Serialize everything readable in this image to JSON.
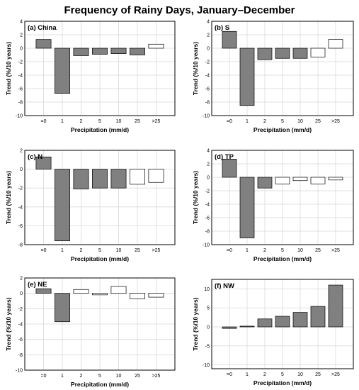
{
  "title": "Frequency of Rainy Days, January–December",
  "colors": {
    "positive_significant": "#808080",
    "negative_significant": "#808080",
    "not_significant": "#ffffff",
    "edge": "#000000",
    "grid": "#d9d9d9"
  },
  "chart_data": [
    {
      "type": "bar",
      "label": "(a) China",
      "categories": [
        "=0",
        "1",
        "2",
        "5",
        "10",
        "25",
        ">25"
      ],
      "values": [
        1.3,
        -6.7,
        -1.1,
        -0.9,
        -0.8,
        -1.0,
        0.6
      ],
      "significant": [
        true,
        true,
        true,
        true,
        true,
        true,
        false
      ],
      "xlabel": "Precipitation (mm/d)",
      "ylabel": "Trend (%/10 years)",
      "ylim": [
        -10,
        4
      ],
      "yticks": [
        -10,
        -8,
        -6,
        -4,
        -2,
        0,
        2,
        4
      ],
      "grid": true
    },
    {
      "type": "bar",
      "label": "(b) S",
      "categories": [
        "=0",
        "1",
        "2",
        "5",
        "10",
        "25",
        ">25"
      ],
      "values": [
        2.5,
        -8.5,
        -1.7,
        -1.5,
        -1.5,
        -1.3,
        1.3
      ],
      "significant": [
        true,
        true,
        true,
        true,
        true,
        false,
        false
      ],
      "xlabel": "Precipitation (mm/d)",
      "ylabel": "Trend (%/10 years)",
      "ylim": [
        -10,
        4
      ],
      "yticks": [
        -10,
        -8,
        -6,
        -4,
        -2,
        0,
        2,
        4
      ],
      "grid": true
    },
    {
      "type": "bar",
      "label": "(c) N",
      "categories": [
        "=0",
        "1",
        "2",
        "5",
        "10",
        "25",
        ">25"
      ],
      "values": [
        1.3,
        -7.6,
        -2.1,
        -2.0,
        -2.0,
        -1.6,
        -1.4
      ],
      "significant": [
        true,
        true,
        true,
        true,
        true,
        false,
        false
      ],
      "xlabel": "Precipitation (mm/d)",
      "ylabel": "Trend (%/10 years)",
      "ylim": [
        -8,
        2
      ],
      "yticks": [
        -8,
        -6,
        -4,
        -2,
        0,
        2
      ],
      "grid": true
    },
    {
      "type": "bar",
      "label": "(d) TP",
      "categories": [
        "=0",
        "1",
        "2",
        "5",
        "10",
        "25",
        ">25"
      ],
      "values": [
        2.7,
        -9.0,
        -1.6,
        -1.0,
        -0.5,
        -1.0,
        -0.4
      ],
      "significant": [
        true,
        true,
        true,
        false,
        false,
        false,
        false
      ],
      "xlabel": "Precipitation (mm/d)",
      "ylabel": "Trend (%/10 years)",
      "ylim": [
        -10,
        4
      ],
      "yticks": [
        -10,
        -8,
        -6,
        -4,
        -2,
        0,
        2,
        4
      ],
      "grid": true
    },
    {
      "type": "bar",
      "label": "(e) NE",
      "categories": [
        "=0",
        "1",
        "2",
        "5",
        "10",
        "25",
        ">25"
      ],
      "values": [
        0.6,
        -3.7,
        0.5,
        -0.2,
        0.9,
        -0.7,
        -0.5
      ],
      "significant": [
        true,
        true,
        false,
        false,
        false,
        false,
        false
      ],
      "xlabel": "Precipitation (mm/d)",
      "ylabel": "Trend (%/10 years)",
      "ylim": [
        -10,
        2
      ],
      "yticks": [
        -10,
        -8,
        -6,
        -4,
        -2,
        0,
        2
      ],
      "grid": true
    },
    {
      "type": "bar",
      "label": "(f) NW",
      "categories": [
        "=0",
        "1",
        "2",
        "5",
        "10",
        "25",
        ">25"
      ],
      "values": [
        -0.4,
        0.2,
        2.1,
        2.8,
        3.8,
        5.4,
        11.0
      ],
      "significant": [
        true,
        true,
        true,
        true,
        true,
        true,
        true
      ],
      "xlabel": "Precipitation (mm/d)",
      "ylabel": "Trend (%/10 years)",
      "ylim": [
        -11,
        12.5
      ],
      "yticks": [
        -10,
        -5,
        0,
        5,
        10
      ],
      "grid": true
    }
  ]
}
